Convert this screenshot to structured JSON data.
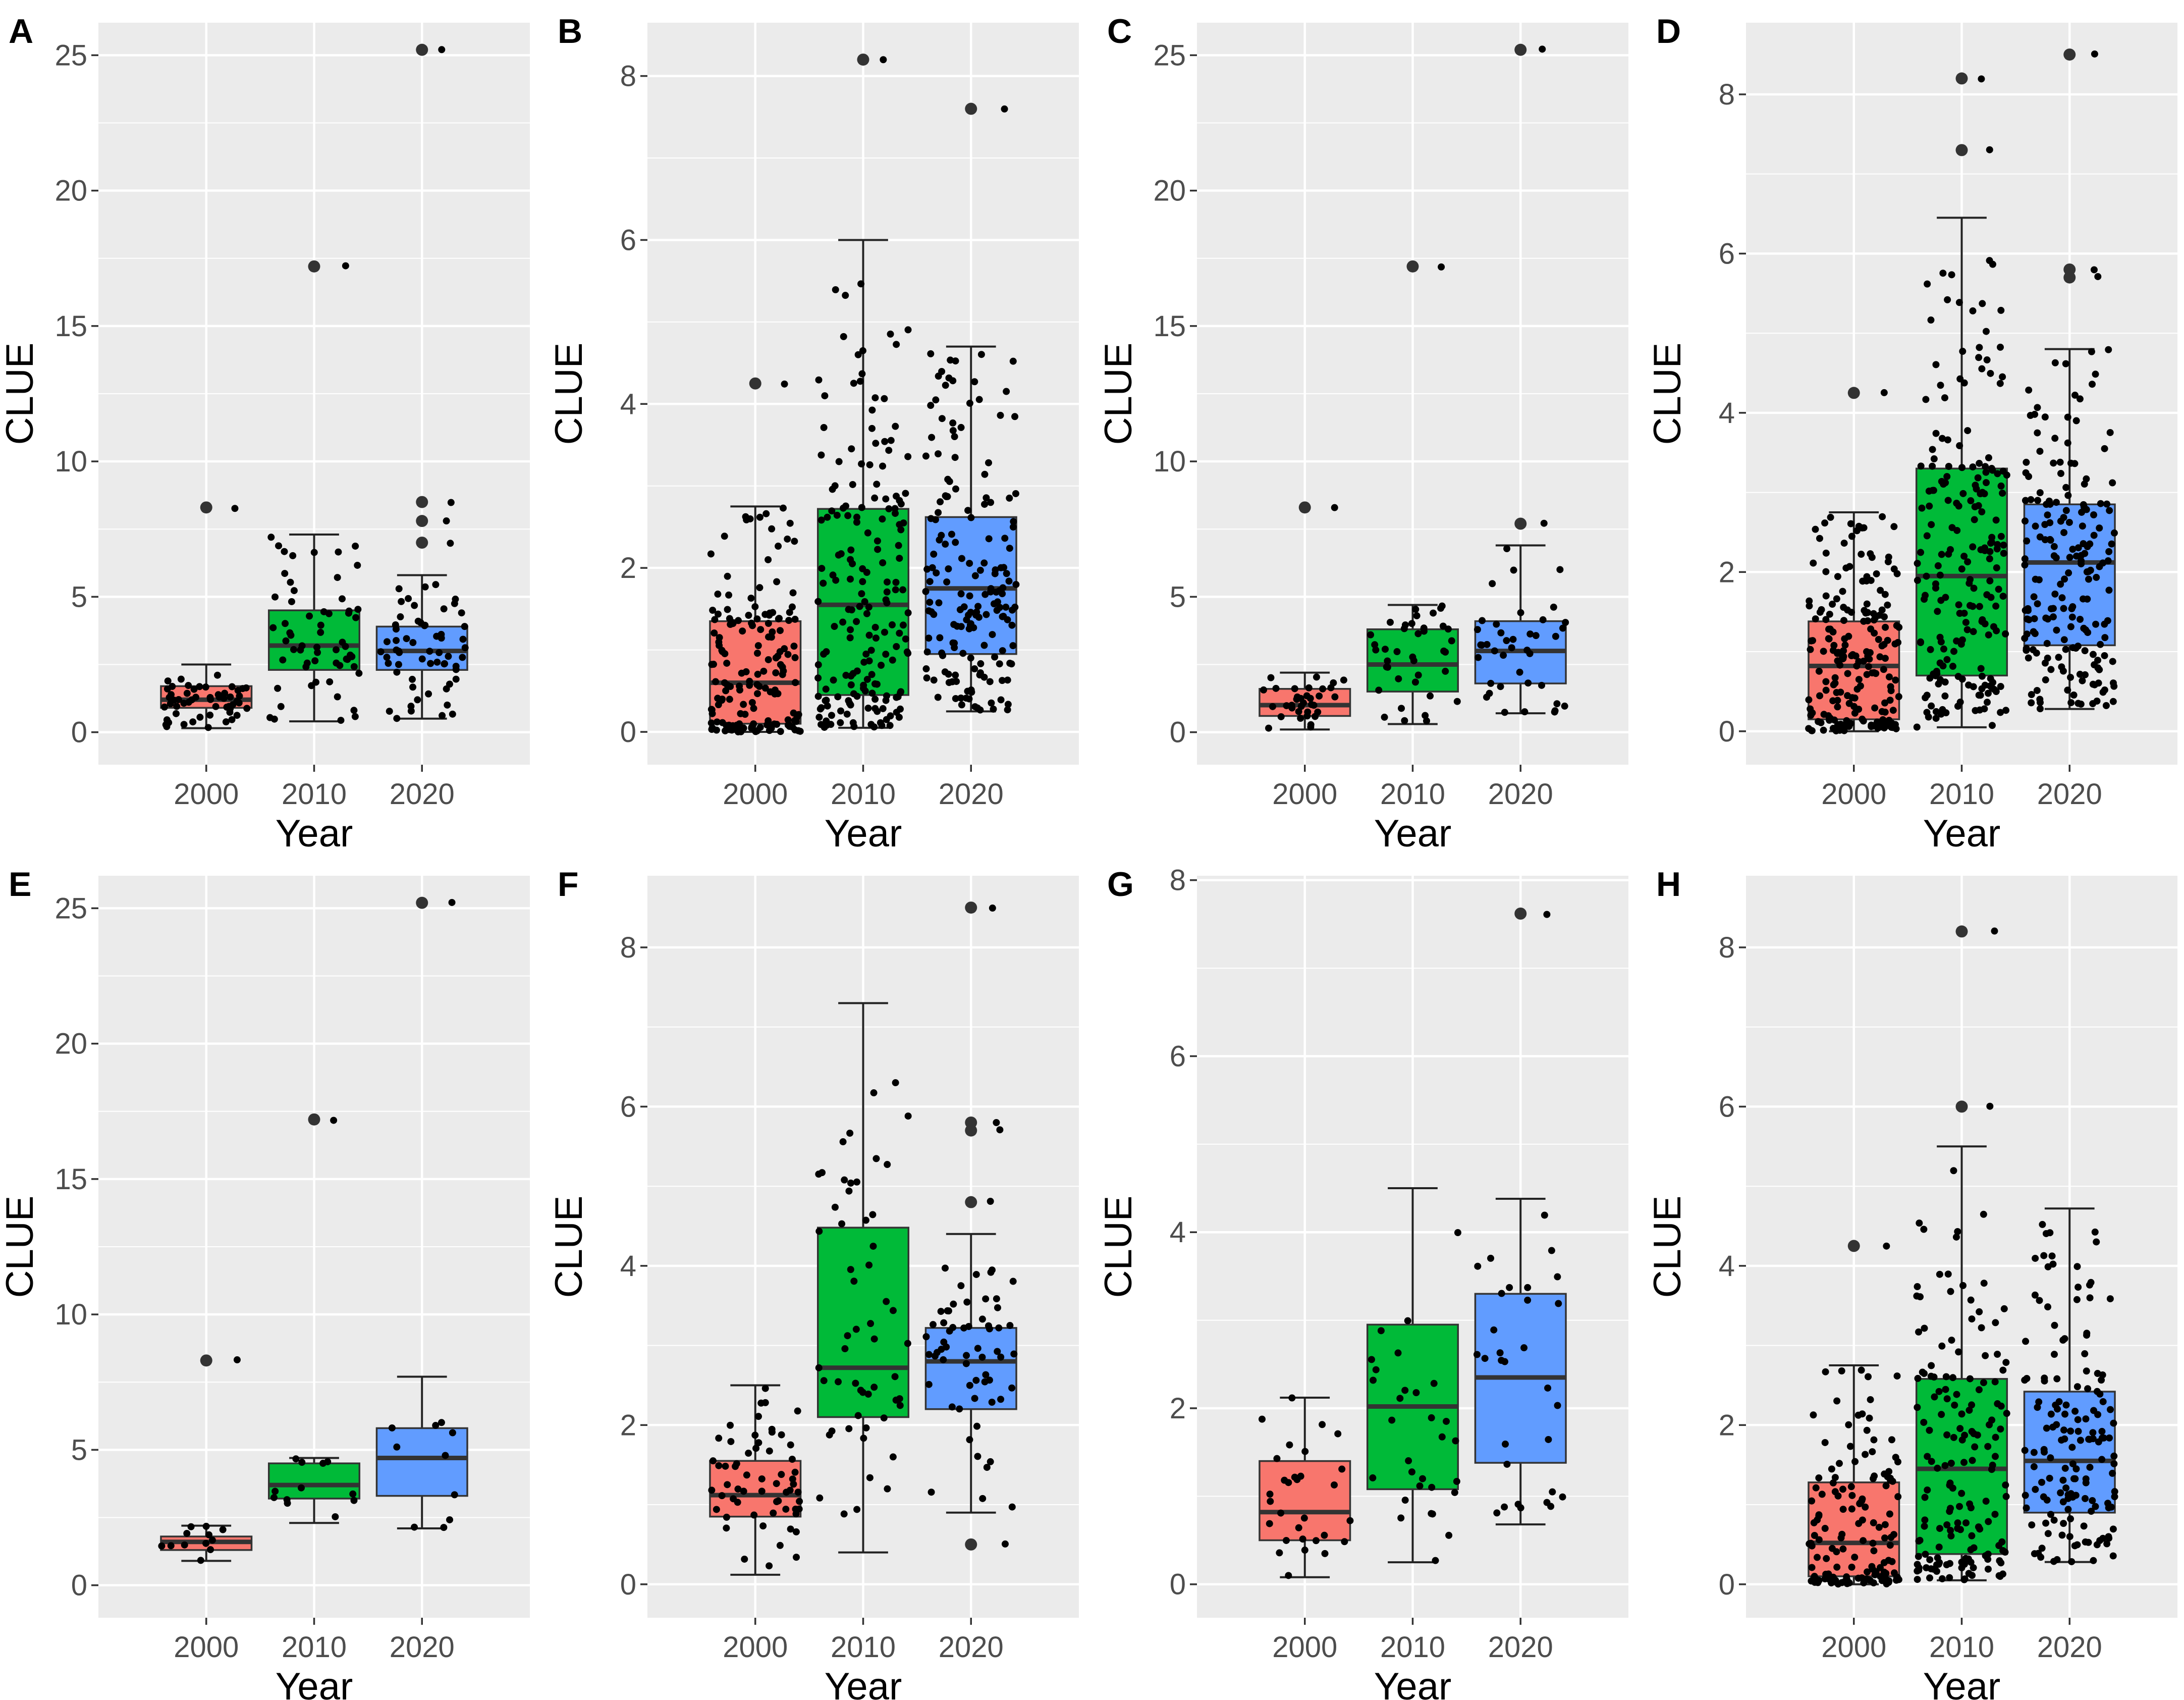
{
  "figure": {
    "fill_colors": {
      "2000": "#F8766D",
      "2010": "#00BA38",
      "2020": "#619CFF"
    },
    "panel_bg": "#EBEBEB",
    "grid_color": "#FFFFFF"
  },
  "chart_data": [
    {
      "panel": "A",
      "type": "box",
      "xlabel": "Year",
      "ylabel": "CLUE",
      "categories": [
        "2000",
        "2010",
        "2020"
      ],
      "ylim": [
        -1.2,
        26.2
      ],
      "yticks": [
        0,
        5,
        10,
        15,
        20,
        25
      ],
      "boxes": [
        {
          "q1": 0.9,
          "median": 1.2,
          "q3": 1.7,
          "whisker_low": 0.15,
          "whisker_high": 2.5,
          "outliers": [
            8.3
          ],
          "n_points": 55,
          "jitter_max": 2.5
        },
        {
          "q1": 2.3,
          "median": 3.2,
          "q3": 4.5,
          "whisker_low": 0.4,
          "whisker_high": 7.3,
          "outliers": [
            17.2
          ],
          "n_points": 60,
          "jitter_max": 7.3
        },
        {
          "q1": 2.3,
          "median": 3.0,
          "q3": 3.9,
          "whisker_low": 0.5,
          "whisker_high": 5.8,
          "outliers": [
            25.2,
            8.5,
            7.8,
            7.0
          ],
          "n_points": 60,
          "jitter_max": 5.8
        }
      ]
    },
    {
      "panel": "B",
      "type": "box",
      "xlabel": "Year",
      "ylabel": "CLUE",
      "categories": [
        "2000",
        "2010",
        "2020"
      ],
      "ylim": [
        -0.4,
        8.65
      ],
      "yticks": [
        0,
        2,
        4,
        6,
        8
      ],
      "boxes": [
        {
          "q1": 0.1,
          "median": 0.6,
          "q3": 1.35,
          "whisker_low": 0.0,
          "whisker_high": 2.75,
          "outliers": [
            4.25
          ],
          "n_points": 160,
          "jitter_max": 2.75
        },
        {
          "q1": 0.45,
          "median": 1.55,
          "q3": 2.72,
          "whisker_low": 0.05,
          "whisker_high": 6.0,
          "outliers": [
            8.2
          ],
          "n_points": 180,
          "jitter_max": 5.5
        },
        {
          "q1": 0.95,
          "median": 1.75,
          "q3": 2.62,
          "whisker_low": 0.25,
          "whisker_high": 4.7,
          "outliers": [
            7.6
          ],
          "n_points": 170,
          "jitter_max": 4.7
        }
      ]
    },
    {
      "panel": "C",
      "type": "box",
      "xlabel": "Year",
      "ylabel": "CLUE",
      "categories": [
        "2000",
        "2010",
        "2020"
      ],
      "ylim": [
        -1.2,
        26.2
      ],
      "yticks": [
        0,
        5,
        10,
        15,
        20,
        25
      ],
      "boxes": [
        {
          "q1": 0.6,
          "median": 1.0,
          "q3": 1.6,
          "whisker_low": 0.1,
          "whisker_high": 2.2,
          "outliers": [
            8.3
          ],
          "n_points": 35,
          "jitter_max": 2.2
        },
        {
          "q1": 1.5,
          "median": 2.5,
          "q3": 3.8,
          "whisker_low": 0.3,
          "whisker_high": 4.7,
          "outliers": [
            17.2
          ],
          "n_points": 40,
          "jitter_max": 4.7
        },
        {
          "q1": 1.8,
          "median": 3.0,
          "q3": 4.1,
          "whisker_low": 0.7,
          "whisker_high": 6.9,
          "outliers": [
            25.2,
            7.7
          ],
          "n_points": 40,
          "jitter_max": 6.9
        }
      ]
    },
    {
      "panel": "D",
      "type": "box",
      "xlabel": "Year",
      "ylabel": "CLUE",
      "categories": [
        "2000",
        "2010",
        "2020"
      ],
      "ylim": [
        -0.42,
        8.9
      ],
      "yticks": [
        0,
        2,
        4,
        6,
        8
      ],
      "boxes": [
        {
          "q1": 0.15,
          "median": 0.82,
          "q3": 1.38,
          "whisker_low": 0.0,
          "whisker_high": 2.75,
          "outliers": [
            4.25
          ],
          "n_points": 200,
          "jitter_max": 2.75
        },
        {
          "q1": 0.7,
          "median": 1.95,
          "q3": 3.3,
          "whisker_low": 0.05,
          "whisker_high": 6.45,
          "outliers": [
            8.2,
            7.3
          ],
          "n_points": 200,
          "jitter_max": 6.0
        },
        {
          "q1": 1.08,
          "median": 2.12,
          "q3": 2.85,
          "whisker_low": 0.28,
          "whisker_high": 4.8,
          "outliers": [
            8.5,
            5.8,
            5.7
          ],
          "n_points": 190,
          "jitter_max": 4.8
        }
      ]
    },
    {
      "panel": "E",
      "type": "box",
      "xlabel": "Year",
      "ylabel": "CLUE",
      "categories": [
        "2000",
        "2010",
        "2020"
      ],
      "ylim": [
        -1.2,
        26.2
      ],
      "yticks": [
        0,
        5,
        10,
        15,
        20,
        25
      ],
      "boxes": [
        {
          "q1": 1.3,
          "median": 1.6,
          "q3": 1.8,
          "whisker_low": 0.9,
          "whisker_high": 2.2,
          "outliers": [
            8.3
          ],
          "n_points": 12,
          "jitter_max": 2.2
        },
        {
          "q1": 3.2,
          "median": 3.7,
          "q3": 4.5,
          "whisker_low": 2.3,
          "whisker_high": 4.7,
          "outliers": [
            17.2
          ],
          "n_points": 12,
          "jitter_max": 4.7
        },
        {
          "q1": 3.3,
          "median": 4.7,
          "q3": 5.8,
          "whisker_low": 2.1,
          "whisker_high": 7.7,
          "outliers": [
            25.2
          ],
          "n_points": 10,
          "jitter_max": 7.7
        }
      ]
    },
    {
      "panel": "F",
      "type": "box",
      "xlabel": "Year",
      "ylabel": "CLUE",
      "categories": [
        "2000",
        "2010",
        "2020"
      ],
      "ylim": [
        -0.42,
        8.9
      ],
      "yticks": [
        0,
        2,
        4,
        6,
        8
      ],
      "boxes": [
        {
          "q1": 0.85,
          "median": 1.12,
          "q3": 1.55,
          "whisker_low": 0.12,
          "whisker_high": 2.5,
          "outliers": [],
          "n_points": 60,
          "jitter_max": 2.5
        },
        {
          "q1": 2.1,
          "median": 2.72,
          "q3": 4.48,
          "whisker_low": 0.4,
          "whisker_high": 7.3,
          "outliers": [],
          "n_points": 55,
          "jitter_max": 6.4
        },
        {
          "q1": 2.2,
          "median": 2.8,
          "q3": 3.22,
          "whisker_low": 0.9,
          "whisker_high": 4.4,
          "outliers": [
            8.5,
            5.8,
            5.7,
            4.8,
            0.5
          ],
          "n_points": 60,
          "jitter_max": 4.4
        }
      ]
    },
    {
      "panel": "G",
      "type": "box",
      "xlabel": "Year",
      "ylabel": "CLUE",
      "categories": [
        "2000",
        "2010",
        "2020"
      ],
      "ylim": [
        -0.38,
        8.05
      ],
      "yticks": [
        0,
        2,
        4,
        6,
        8
      ],
      "boxes": [
        {
          "q1": 0.5,
          "median": 0.82,
          "q3": 1.4,
          "whisker_low": 0.08,
          "whisker_high": 2.12,
          "outliers": [],
          "n_points": 30,
          "jitter_max": 2.12
        },
        {
          "q1": 1.08,
          "median": 2.02,
          "q3": 2.95,
          "whisker_low": 0.25,
          "whisker_high": 4.5,
          "outliers": [],
          "n_points": 30,
          "jitter_max": 4.5
        },
        {
          "q1": 1.38,
          "median": 2.35,
          "q3": 3.3,
          "whisker_low": 0.68,
          "whisker_high": 4.38,
          "outliers": [
            7.62
          ],
          "n_points": 30,
          "jitter_max": 4.38
        }
      ]
    },
    {
      "panel": "H",
      "type": "box",
      "xlabel": "Year",
      "ylabel": "CLUE",
      "categories": [
        "2000",
        "2010",
        "2020"
      ],
      "ylim": [
        -0.42,
        8.9
      ],
      "yticks": [
        0,
        2,
        4,
        6,
        8
      ],
      "boxes": [
        {
          "q1": 0.1,
          "median": 0.52,
          "q3": 1.28,
          "whisker_low": 0.0,
          "whisker_high": 2.75,
          "outliers": [
            4.25
          ],
          "n_points": 140,
          "jitter_max": 2.75
        },
        {
          "q1": 0.38,
          "median": 1.45,
          "q3": 2.58,
          "whisker_low": 0.05,
          "whisker_high": 5.5,
          "outliers": [
            8.2,
            6.0
          ],
          "n_points": 160,
          "jitter_max": 5.5
        },
        {
          "q1": 0.9,
          "median": 1.55,
          "q3": 2.42,
          "whisker_low": 0.28,
          "whisker_high": 4.72,
          "outliers": [],
          "n_points": 150,
          "jitter_max": 4.72
        }
      ]
    }
  ]
}
